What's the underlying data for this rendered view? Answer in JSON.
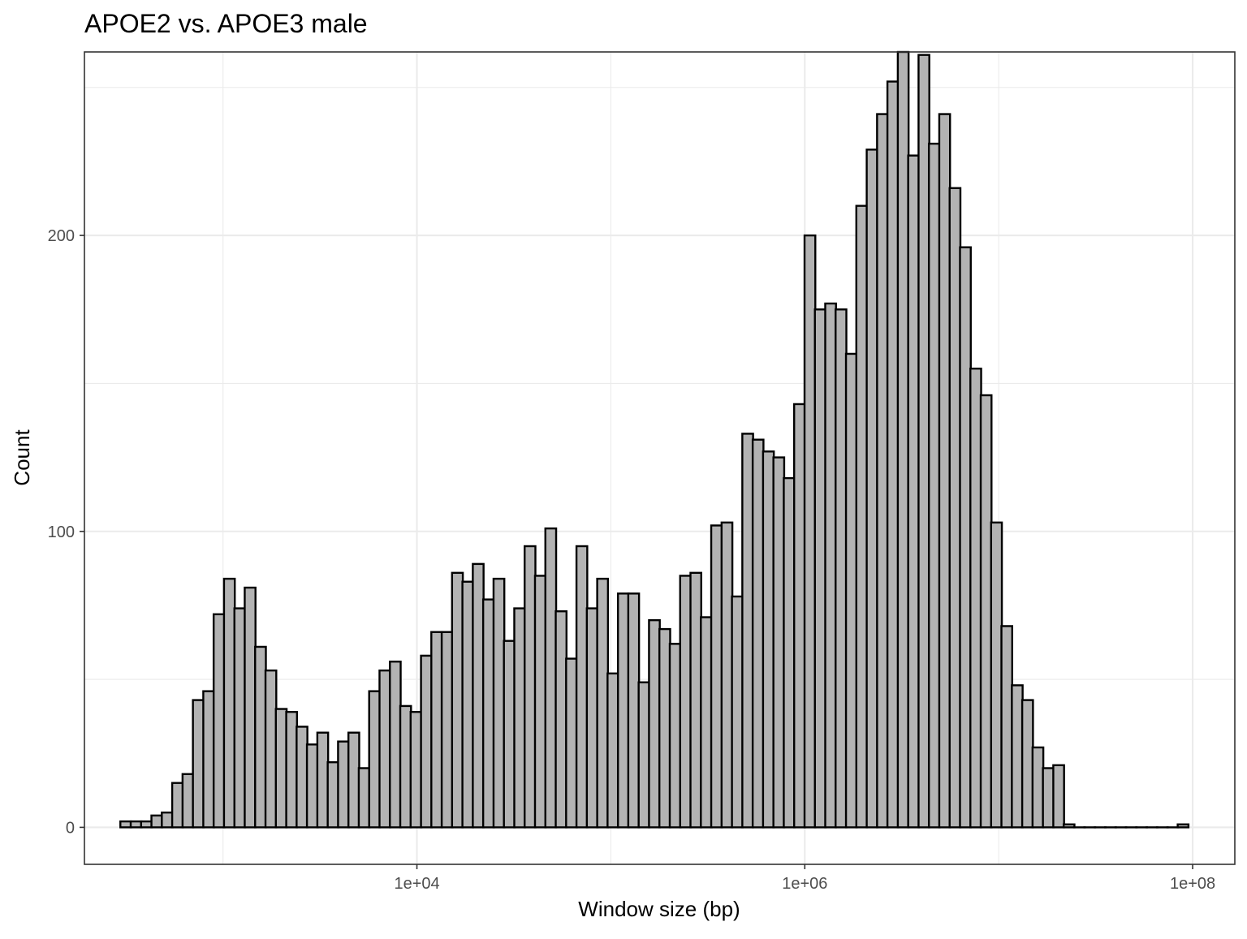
{
  "chart_data": {
    "type": "bar",
    "subtype": "histogram",
    "title": "APOE2 vs. APOE3 male",
    "xlabel": "Window size (bp)",
    "ylabel": "Count",
    "x_scale": "log10",
    "xlim": [
      193,
      165000000
    ],
    "ylim": [
      -12.5,
      262
    ],
    "x_ticks": [
      {
        "value": 10000,
        "label": "1e+04"
      },
      {
        "value": 1000000,
        "label": "1e+06"
      },
      {
        "value": 100000000,
        "label": "1e+08"
      }
    ],
    "y_ticks": [
      {
        "value": 0,
        "label": "0"
      },
      {
        "value": 100,
        "label": "100"
      },
      {
        "value": 200,
        "label": "200"
      }
    ],
    "grid": true,
    "legend": "none",
    "bar_fill": "#b3b3b3",
    "bar_outline": "#000000",
    "bin_width_log10": 0.05556,
    "bin_centers": [
      315.2,
      356.4,
      403.1,
      455.9,
      515.6,
      583.2,
      659.6,
      746.0,
      843.7,
      954.2,
      1079,
      1221,
      1380,
      1561,
      1766,
      1997,
      2259,
      2555,
      2889,
      3268,
      3696,
      4180,
      4727,
      5346,
      6046,
      6838,
      7734,
      8747,
      9892,
      11190,
      12650,
      14310,
      16180,
      18300,
      20700,
      23410,
      26480,
      29950,
      33870,
      38300,
      43320,
      48990,
      55410,
      62670,
      70880,
      80160,
      90650,
      102500,
      116000,
      131100,
      148300,
      167700,
      189700,
      214600,
      242700,
      274400,
      310400,
      351000,
      397000,
      449000,
      507800,
      574300,
      649500,
      734600,
      830800,
      939600,
      1063000,
      1202000,
      1359000,
      1537000,
      1739000,
      1966000,
      2224000,
      2515000,
      2844000,
      3217000,
      3638000,
      4115000,
      4654000,
      5263000,
      5953000,
      6732000,
      7614000,
      8611000,
      9739000,
      11010000,
      12460000,
      14090000,
      15930000,
      18020000,
      20380000,
      23050000,
      26070000,
      29480000,
      33350000,
      37710000,
      42650000,
      48240000,
      54560000,
      61700000,
      69780000,
      78920000,
      89260000
    ],
    "values": [
      2,
      2,
      2,
      4,
      5,
      15,
      18,
      43,
      46,
      72,
      84,
      74,
      81,
      61,
      53,
      40,
      39,
      34,
      28,
      32,
      22,
      29,
      32,
      20,
      46,
      53,
      56,
      41,
      39,
      58,
      66,
      66,
      86,
      83,
      89,
      77,
      84,
      63,
      74,
      95,
      85,
      101,
      73,
      57,
      95,
      74,
      84,
      52,
      79,
      79,
      49,
      70,
      67,
      62,
      85,
      86,
      71,
      102,
      103,
      78,
      133,
      131,
      127,
      125,
      118,
      143,
      200,
      175,
      177,
      175,
      160,
      210,
      229,
      241,
      252,
      262,
      227,
      261,
      231,
      241,
      216,
      196,
      155,
      146,
      103,
      68,
      48,
      43,
      27,
      20,
      21,
      1,
      0,
      0,
      0,
      0,
      0,
      0,
      0,
      0,
      0,
      0,
      1
    ]
  }
}
